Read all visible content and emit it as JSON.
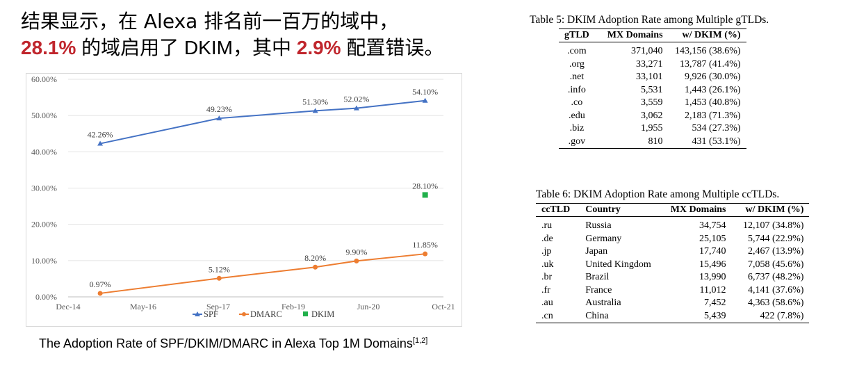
{
  "headline": {
    "line1": "结果显示，在 Alexa 排名前一百万的域中，",
    "line2_pct1": "28.1%",
    "line2_mid": " 的域启用了 DKIM，其中 ",
    "line2_pct2": "2.9%",
    "line2_end": " 配置错误。"
  },
  "chart_caption": "The Adoption Rate of SPF/DKIM/DMARC in Alexa Top 1M Domains",
  "chart_caption_sup": "[1,2]",
  "chart_data": {
    "type": "line",
    "title": "",
    "xlabel": "",
    "ylabel": "",
    "x_ticks": [
      "Dec-14",
      "May-16",
      "Sep-17",
      "Feb-19",
      "Jun-20",
      "Oct-21"
    ],
    "x_range": [
      "2014-12",
      "2021-10"
    ],
    "y_ticks": [
      "0.00%",
      "10.00%",
      "20.00%",
      "30.00%",
      "40.00%",
      "50.00%",
      "60.00%"
    ],
    "ylim": [
      0,
      60
    ],
    "grid": "horizontal",
    "legend_position": "bottom",
    "series": [
      {
        "name": "SPF",
        "color": "#4472c4",
        "marker": "triangle",
        "x": [
          "2015-07",
          "2017-09",
          "2019-06",
          "2020-03",
          "2021-06"
        ],
        "values": [
          42.26,
          49.23,
          51.3,
          52.02,
          54.1
        ],
        "labels": [
          "42.26%",
          "49.23%",
          "51.30%",
          "52.02%",
          "54.10%"
        ]
      },
      {
        "name": "DMARC",
        "color": "#ed7d31",
        "marker": "circle",
        "x": [
          "2015-07",
          "2017-09",
          "2019-06",
          "2020-03",
          "2021-06"
        ],
        "values": [
          0.97,
          5.12,
          8.2,
          9.9,
          11.85
        ],
        "labels": [
          "0.97%",
          "5.12%",
          "8.20%",
          "9.90%",
          "11.85%"
        ]
      },
      {
        "name": "DKIM",
        "color": "#21b04b",
        "marker": "square",
        "x": [
          "2021-06"
        ],
        "values": [
          28.1
        ],
        "labels": [
          "28.10%"
        ]
      }
    ]
  },
  "table5": {
    "title": "Table 5: DKIM Adoption Rate among Multiple gTLDs.",
    "headers": [
      "gTLD",
      "MX Domains",
      "w/ DKIM (%)"
    ],
    "rows": [
      [
        ".com",
        "371,040",
        "143,156 (38.6%)"
      ],
      [
        ".org",
        "33,271",
        "13,787 (41.4%)"
      ],
      [
        ".net",
        "33,101",
        "9,926 (30.0%)"
      ],
      [
        ".info",
        "5,531",
        "1,443 (26.1%)"
      ],
      [
        ".co",
        "3,559",
        "1,453 (40.8%)"
      ],
      [
        ".edu",
        "3,062",
        "2,183 (71.3%)"
      ],
      [
        ".biz",
        "1,955",
        "534 (27.3%)"
      ],
      [
        ".gov",
        "810",
        "431 (53.1%)"
      ]
    ]
  },
  "table6": {
    "title": "Table 6: DKIM Adoption Rate among Multiple ccTLDs.",
    "headers": [
      "ccTLD",
      "Country",
      "MX Domains",
      "w/ DKIM (%)"
    ],
    "rows": [
      [
        ".ru",
        "Russia",
        "34,754",
        "12,107 (34.8%)"
      ],
      [
        ".de",
        "Germany",
        "25,105",
        "5,744 (22.9%)"
      ],
      [
        ".jp",
        "Japan",
        "17,740",
        "2,467 (13.9%)"
      ],
      [
        ".uk",
        "United Kingdom",
        "15,496",
        "7,058 (45.6%)"
      ],
      [
        ".br",
        "Brazil",
        "13,990",
        "6,737 (48.2%)"
      ],
      [
        ".fr",
        "France",
        "11,012",
        "4,141 (37.6%)"
      ],
      [
        ".au",
        "Australia",
        "7,452",
        "4,363 (58.6%)"
      ],
      [
        ".cn",
        "China",
        "5,439",
        "422 (7.8%)"
      ]
    ]
  }
}
